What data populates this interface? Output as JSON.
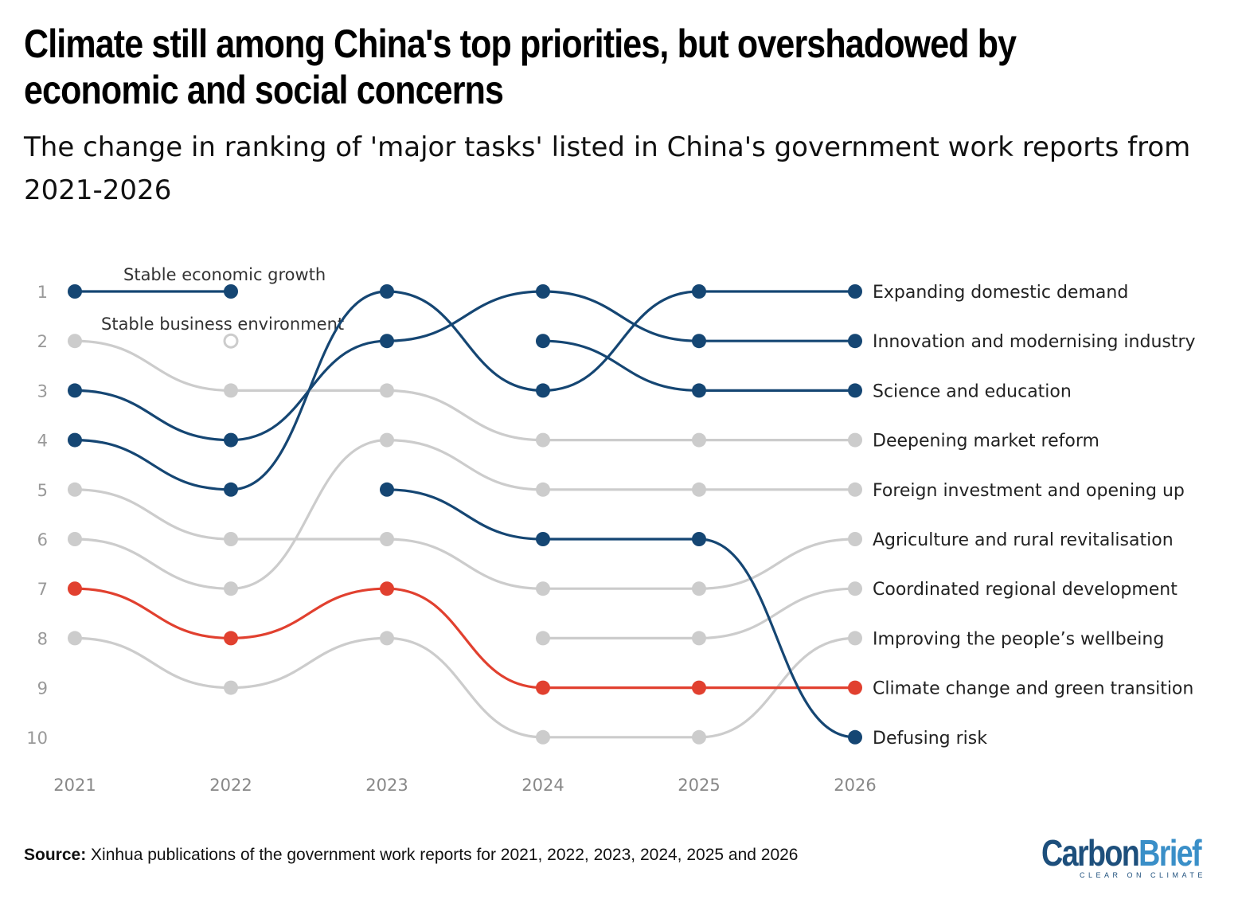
{
  "chart_data": {
    "type": "bump",
    "title": "Climate still among China's top priorities, but overshadowed by economic and social concerns",
    "subtitle": "The change in ranking of 'major tasks' listed in China's government work reports from 2021-2026",
    "x": [
      "2021",
      "2022",
      "2023",
      "2024",
      "2025",
      "2026"
    ],
    "y_ticks": [
      "1",
      "2",
      "3",
      "4",
      "5",
      "6",
      "7",
      "8",
      "9",
      "10"
    ],
    "y_reversed": true,
    "colors": {
      "highlight": "#154673",
      "climate": "#e1402f",
      "other": "#cccccc"
    },
    "series": [
      {
        "name": "Stable economic growth",
        "ranks": [
          1,
          1,
          null,
          null,
          null,
          null
        ],
        "color": "highlight",
        "label_position": "inline"
      },
      {
        "name": "Stable business environment",
        "ranks": [
          null,
          2,
          null,
          null,
          null,
          null
        ],
        "color": "other",
        "marker": "open",
        "label_position": "inline"
      },
      {
        "name": "Expanding domestic demand",
        "ranks": [
          4,
          5,
          1,
          3,
          1,
          1
        ],
        "color": "highlight"
      },
      {
        "name": "Innovation and modernising industry",
        "ranks": [
          3,
          4,
          2,
          1,
          2,
          2
        ],
        "color": "highlight"
      },
      {
        "name": "Science and education",
        "ranks": [
          null,
          null,
          null,
          2,
          3,
          3
        ],
        "color": "highlight"
      },
      {
        "name": "Deepening market reform",
        "ranks": [
          2,
          3,
          3,
          4,
          4,
          4
        ],
        "color": "other"
      },
      {
        "name": "Foreign investment and opening up",
        "ranks": [
          6,
          7,
          4,
          5,
          5,
          5
        ],
        "color": "other"
      },
      {
        "name": "Agriculture and rural revitalisation",
        "ranks": [
          5,
          6,
          6,
          7,
          7,
          6
        ],
        "color": "other"
      },
      {
        "name": "Coordinated regional development",
        "ranks": [
          null,
          null,
          null,
          8,
          8,
          7
        ],
        "color": "other"
      },
      {
        "name": "Improving the people’s wellbeing",
        "ranks": [
          8,
          9,
          8,
          10,
          10,
          8
        ],
        "color": "other"
      },
      {
        "name": "Climate change and green transition",
        "ranks": [
          7,
          8,
          7,
          9,
          9,
          9
        ],
        "color": "climate"
      },
      {
        "name": "Defusing risk",
        "ranks": [
          null,
          null,
          5,
          6,
          6,
          10
        ],
        "color": "highlight"
      }
    ]
  },
  "source": {
    "label": "Source:",
    "text": " Xinhua publications of the government work reports for 2021, 2022, 2023, 2024, 2025 and 2026"
  },
  "logo": {
    "carbon": "Carbon",
    "brief": "Brief",
    "tagline": "CLEAR ON CLIMATE"
  }
}
